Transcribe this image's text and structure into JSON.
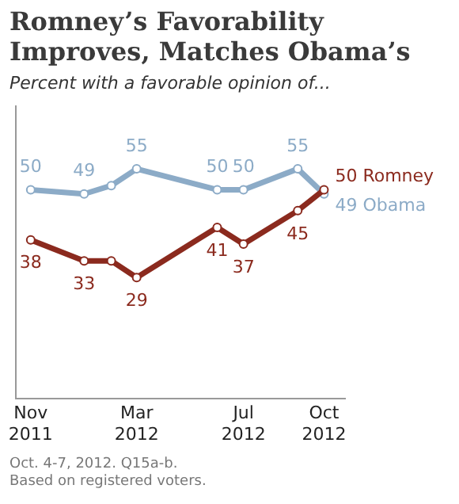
{
  "chart_data": {
    "type": "line",
    "title": "Romney’s Favorability Improves, Matches Obama’s",
    "subtitle": "Percent with a favorable opinion of...",
    "x": [
      "2011-11",
      "2012-01",
      "2012-02",
      "2012-03",
      "2012-06",
      "2012-07",
      "2012-09",
      "2012-10"
    ],
    "xlim": [
      "2011-10-15",
      "2012-10-25"
    ],
    "xticks": [
      {
        "value": "2011-11",
        "label": "Nov 2011"
      },
      {
        "value": "2012-03",
        "label": "Mar 2012"
      },
      {
        "value": "2012-07",
        "label": "Jul 2012"
      },
      {
        "value": "2012-10",
        "label": "Oct 2012"
      }
    ],
    "series": [
      {
        "name": "Obama",
        "color": "#8cabc7",
        "values": [
          50,
          49,
          51,
          55,
          50,
          50,
          55,
          49
        ],
        "value_labels": [
          "50",
          "49",
          null,
          "55",
          "50",
          "50",
          "55",
          "49"
        ]
      },
      {
        "name": "Romney",
        "color": "#8b2a1e",
        "values": [
          38,
          33,
          33,
          29,
          41,
          37,
          45,
          50
        ],
        "value_labels": [
          "38",
          "33",
          null,
          "29",
          "41",
          "37",
          "45",
          "50"
        ]
      }
    ],
    "marker": "circle",
    "line_style": "solid",
    "grid": false,
    "legend": false,
    "annotations": [
      "Oct. 4-7, 2012. Q15a-b.",
      "Based on registered voters."
    ]
  }
}
